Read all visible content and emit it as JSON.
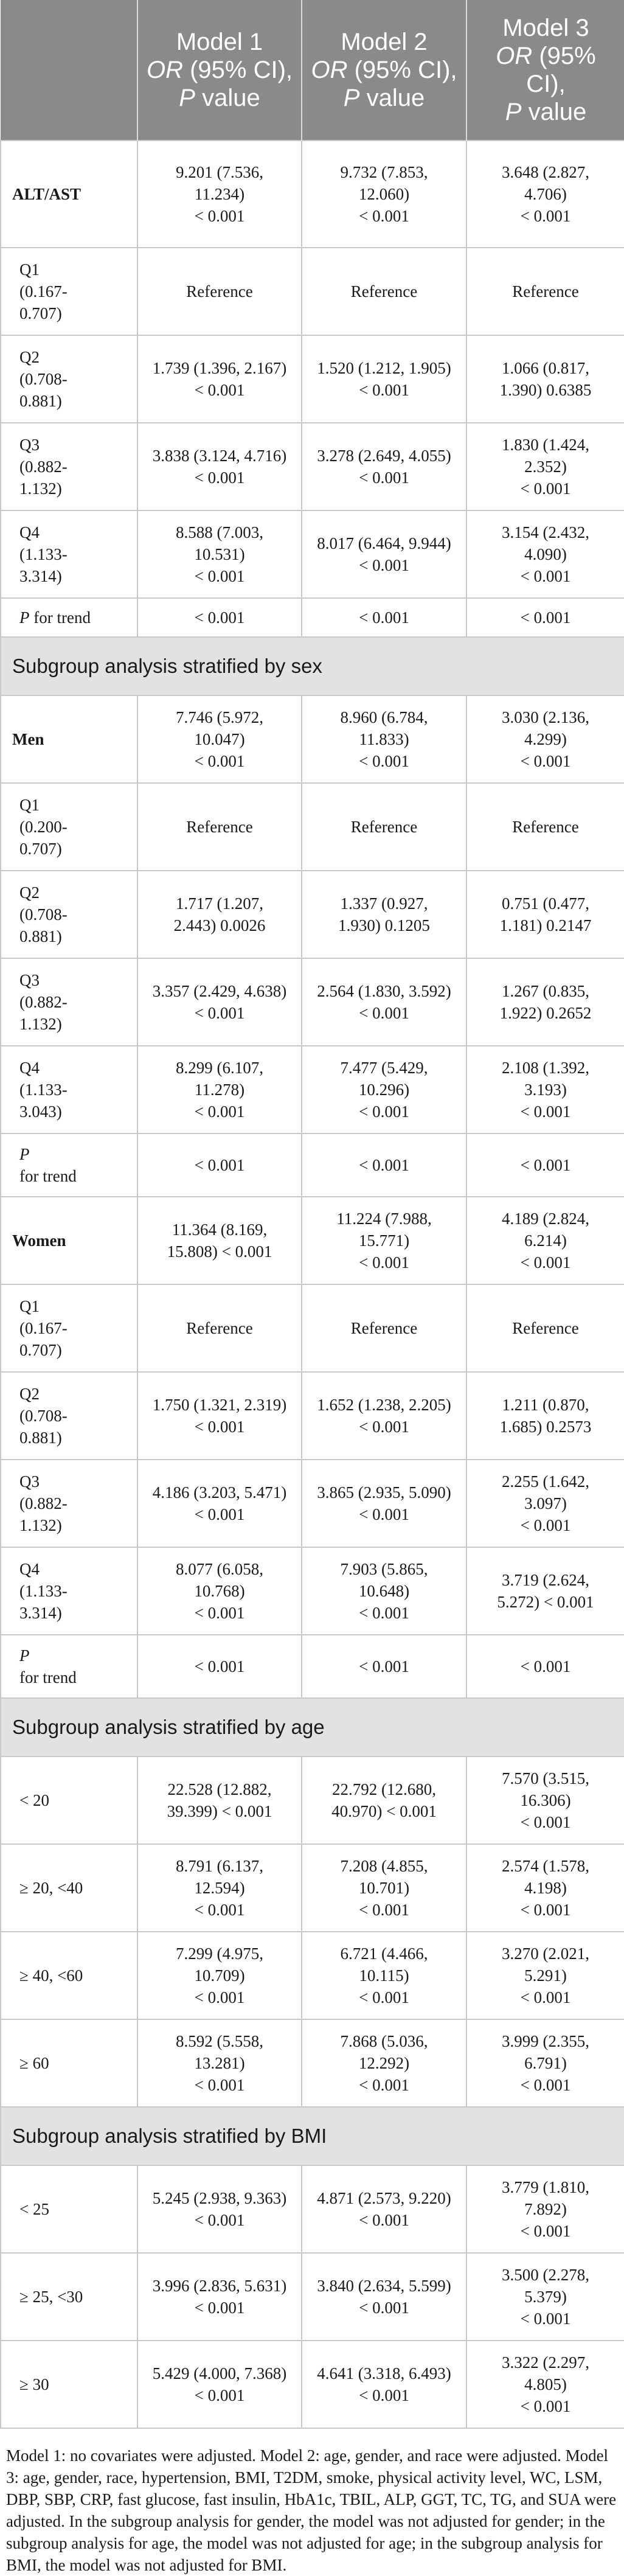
{
  "header": {
    "col0": "",
    "model1": {
      "name": "Model 1",
      "stat": "OR",
      "ci": " (95% CI),",
      "p": "P",
      "value": " value"
    },
    "model2": {
      "name": "Model 2",
      "stat": "OR",
      "ci": " (95% CI),",
      "p": "P",
      "value": " value"
    },
    "model3": {
      "name": "Model 3",
      "stat": "OR",
      "ci": " (95% CI),",
      "p": "P",
      "value": " value"
    }
  },
  "rows": [
    {
      "type": "row",
      "label": "ALT/AST",
      "style": "bold",
      "h": 178,
      "m1": "9.201 (7.536,\n11.234)\n< 0.001",
      "m2": "9.732 (7.853,\n12.060)\n< 0.001",
      "m3": "3.648 (2.827,\n4.706)\n< 0.001"
    },
    {
      "type": "row",
      "label": "Q1\n(0.167-\n0.707)",
      "style": "sub",
      "h": 146,
      "m1": "Reference",
      "m2": "Reference",
      "m3": "Reference"
    },
    {
      "type": "row",
      "label": "Q2\n(0.708-\n0.881)",
      "style": "sub",
      "h": 146,
      "m1": "1.739 (1.396, 2.167)\n< 0.001",
      "m2": "1.520 (1.212, 1.905)\n< 0.001",
      "m3": "1.066 (0.817,\n1.390) 0.6385"
    },
    {
      "type": "row",
      "label": "Q3\n(0.882-\n1.132)",
      "style": "sub",
      "h": 146,
      "m1": "3.838 (3.124, 4.716)\n< 0.001",
      "m2": "3.278 (2.649, 4.055)\n< 0.001",
      "m3": "1.830 (1.424,\n2.352)\n< 0.001"
    },
    {
      "type": "row",
      "label": "Q4\n(1.133-\n3.314)",
      "style": "sub",
      "h": 146,
      "m1": "8.588 (7.003,\n10.531)\n< 0.001",
      "m2": "8.017 (6.464, 9.944)\n< 0.001",
      "m3": "3.154 (2.432,\n4.090)\n< 0.001"
    },
    {
      "type": "row",
      "label": "P for trend",
      "style": "sub-p",
      "h": 66,
      "m1": "< 0.001",
      "m2": "< 0.001",
      "m3": "< 0.001"
    },
    {
      "type": "section",
      "label": "Subgroup analysis stratified by sex"
    },
    {
      "type": "row",
      "label": "Men",
      "style": "bold",
      "h": 146,
      "m1": "7.746 (5.972,\n10.047)\n< 0.001",
      "m2": "8.960 (6.784,\n11.833)\n< 0.001",
      "m3": "3.030 (2.136,\n4.299)\n< 0.001"
    },
    {
      "type": "row",
      "label": "Q1\n(0.200-\n0.707)",
      "style": "sub",
      "h": 146,
      "m1": "Reference",
      "m2": "Reference",
      "m3": "Reference"
    },
    {
      "type": "row",
      "label": "Q2\n(0.708-\n0.881)",
      "style": "sub",
      "h": 146,
      "m1": "1.717 (1.207,\n2.443) 0.0026",
      "m2": "1.337 (0.927,\n1.930) 0.1205",
      "m3": "0.751 (0.477,\n1.181) 0.2147"
    },
    {
      "type": "row",
      "label": "Q3\n(0.882-\n1.132)",
      "style": "sub",
      "h": 146,
      "m1": "3.357 (2.429, 4.638)\n< 0.001",
      "m2": "2.564 (1.830, 3.592)\n< 0.001",
      "m3": "1.267 (0.835,\n1.922) 0.2652"
    },
    {
      "type": "row",
      "label": "Q4\n(1.133-\n3.043)",
      "style": "sub",
      "h": 146,
      "m1": "8.299 (6.107,\n11.278)\n< 0.001",
      "m2": "7.477 (5.429,\n10.296)\n< 0.001",
      "m3": "2.108 (1.392,\n3.193)\n< 0.001"
    },
    {
      "type": "row",
      "label": "P\nfor trend",
      "style": "sub-p",
      "h": 106,
      "m1": "< 0.001",
      "m2": "< 0.001",
      "m3": "< 0.001"
    },
    {
      "type": "row",
      "label": "Women",
      "style": "bold",
      "h": 146,
      "m1": "11.364 (8.169,\n15.808) < 0.001",
      "m2": "11.224 (7.988,\n15.771)\n< 0.001",
      "m3": "4.189 (2.824,\n6.214)\n< 0.001"
    },
    {
      "type": "row",
      "label": "Q1\n(0.167-\n0.707)",
      "style": "sub",
      "h": 146,
      "m1": "Reference",
      "m2": "Reference",
      "m3": "Reference"
    },
    {
      "type": "row",
      "label": "Q2\n(0.708-\n0.881)",
      "style": "sub",
      "h": 146,
      "m1": "1.750 (1.321, 2.319)\n< 0.001",
      "m2": "1.652 (1.238, 2.205)\n< 0.001",
      "m3": "1.211 (0.870,\n1.685) 0.2573"
    },
    {
      "type": "row",
      "label": "Q3\n(0.882-\n1.132)",
      "style": "sub",
      "h": 146,
      "m1": "4.186 (3.203, 5.471)\n< 0.001",
      "m2": "3.865 (2.935, 5.090)\n< 0.001",
      "m3": "2.255 (1.642,\n3.097)\n< 0.001"
    },
    {
      "type": "row",
      "label": "Q4\n(1.133-\n3.314)",
      "style": "sub",
      "h": 146,
      "m1": "8.077 (6.058,\n10.768)\n< 0.001",
      "m2": "7.903 (5.865,\n10.648)\n< 0.001",
      "m3": "3.719 (2.624,\n5.272) < 0.001"
    },
    {
      "type": "row",
      "label": "P\nfor trend",
      "style": "sub-p",
      "h": 106,
      "m1": "< 0.001",
      "m2": "< 0.001",
      "m3": "< 0.001"
    },
    {
      "type": "section",
      "label": "Subgroup analysis stratified by age"
    },
    {
      "type": "row",
      "label": "< 20",
      "style": "sub",
      "h": 146,
      "m1": "22.528 (12.882,\n39.399) < 0.001",
      "m2": "22.792 (12.680,\n40.970) < 0.001",
      "m3": "7.570 (3.515,\n16.306)\n< 0.001"
    },
    {
      "type": "row",
      "label": "≥ 20, <40",
      "style": "sub",
      "h": 146,
      "m1": "8.791 (6.137,\n12.594)\n< 0.001",
      "m2": "7.208 (4.855,\n10.701)\n< 0.001",
      "m3": "2.574 (1.578,\n4.198)\n< 0.001"
    },
    {
      "type": "row",
      "label": "≥ 40, <60",
      "style": "sub",
      "h": 146,
      "m1": "7.299 (4.975,\n10.709)\n< 0.001",
      "m2": "6.721 (4.466,\n10.115)\n< 0.001",
      "m3": "3.270 (2.021,\n5.291)\n< 0.001"
    },
    {
      "type": "row",
      "label": "≥ 60",
      "style": "sub",
      "h": 146,
      "m1": "8.592 (5.558,\n13.281)\n< 0.001",
      "m2": "7.868 (5.036,\n12.292)\n< 0.001",
      "m3": "3.999 (2.355,\n6.791)\n< 0.001"
    },
    {
      "type": "section",
      "label": "Subgroup analysis stratified by BMI"
    },
    {
      "type": "row",
      "label": "< 25",
      "style": "sub",
      "h": 146,
      "m1": "5.245 (2.938, 9.363)\n< 0.001",
      "m2": "4.871 (2.573, 9.220)\n< 0.001",
      "m3": "3.779 (1.810,\n7.892)\n< 0.001"
    },
    {
      "type": "row",
      "label": "≥ 25, <30",
      "style": "sub",
      "h": 146,
      "m1": "3.996 (2.836, 5.631)\n< 0.001",
      "m2": "3.840 (2.634, 5.599)\n< 0.001",
      "m3": "3.500 (2.278,\n5.379)\n< 0.001"
    },
    {
      "type": "row",
      "label": "≥ 30",
      "style": "sub",
      "h": 146,
      "m1": "5.429 (4.000, 7.368)\n< 0.001",
      "m2": "4.641 (3.318, 6.493)\n< 0.001",
      "m3": "3.322 (2.297,\n4.805)\n< 0.001"
    }
  ],
  "footnote": "Model 1: no covariates were adjusted. Model 2: age, gender, and race were adjusted. Model 3: age, gender, race, hypertension, BMI, T2DM, smoke, physical activity level, WC, LSM, DBP, SBP, CRP, fast glucose, fast insulin, HbA1c, TBIL, ALP, GGT, TC, TG, and SUA were adjusted. In the subgroup analysis for gender, the model was not adjusted for gender; in the subgroup analysis for age, the model was not adjusted for age; in the subgroup analysis for BMI, the model was not adjusted for BMI."
}
